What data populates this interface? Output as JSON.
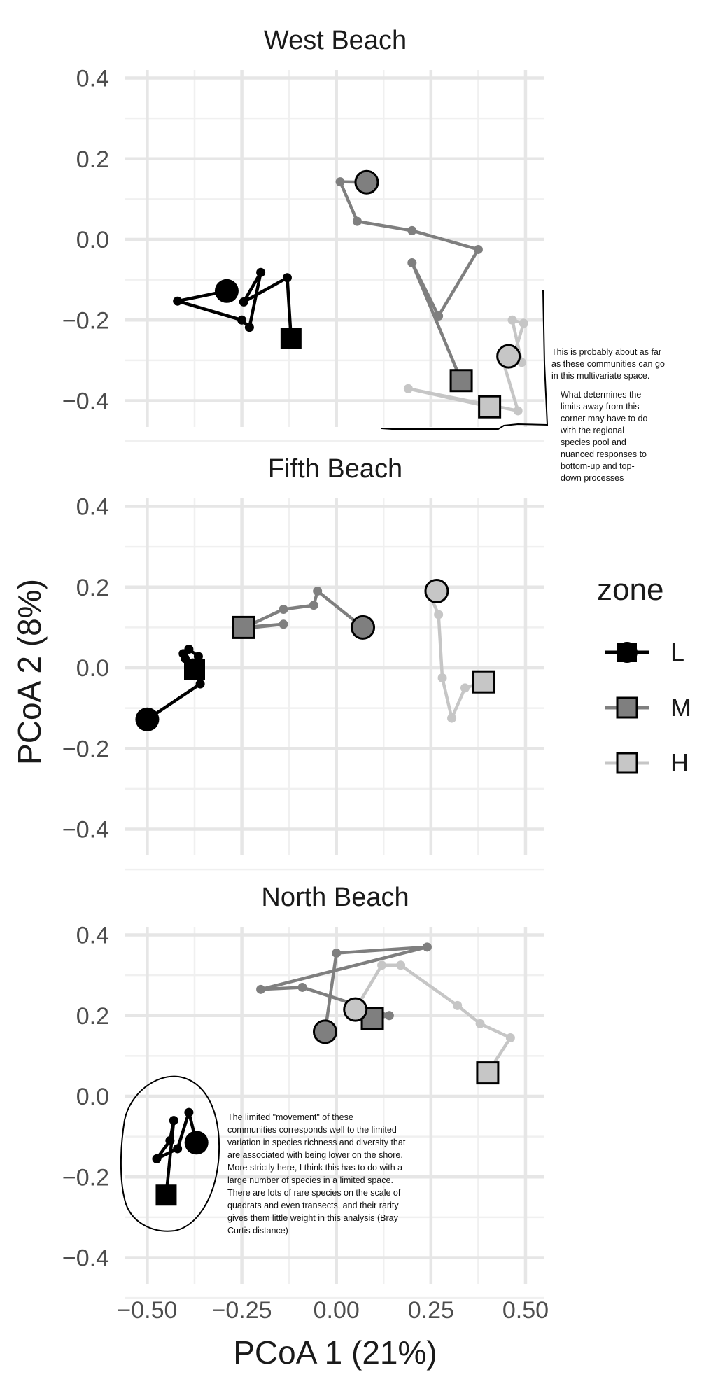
{
  "chart_data": {
    "type": "scatter",
    "xlabel": "PCoA 1 (21%)",
    "ylabel": "PCoA 2 (8%)",
    "xlim": [
      -0.56,
      0.55
    ],
    "ylim": [
      -0.465,
      0.42
    ],
    "x_ticks": [
      -0.5,
      -0.25,
      0.0,
      0.25,
      0.5
    ],
    "x_tick_labels": [
      "−0.50",
      "−0.25",
      "0.00",
      "0.25",
      "0.50"
    ],
    "y_ticks": [
      -0.4,
      -0.2,
      0.0,
      0.2,
      0.4
    ],
    "y_tick_labels": [
      "−0.4",
      "−0.2",
      "0.0",
      "0.2",
      "0.4"
    ],
    "grid": true,
    "legend": {
      "title": "zone",
      "position": "right",
      "items": [
        {
          "label": "L",
          "color": "#000000"
        },
        {
          "label": "M",
          "color": "#7f7f7f"
        },
        {
          "label": "H",
          "color": "#c6c6c6"
        }
      ]
    },
    "panels": [
      {
        "title": "West Beach",
        "series": [
          {
            "name": "L",
            "color": "#000000",
            "points": [
              [
                -0.29,
                -0.128
              ],
              [
                -0.42,
                -0.153
              ],
              [
                -0.25,
                -0.2
              ],
              [
                -0.23,
                -0.218
              ],
              [
                -0.2,
                -0.082
              ],
              [
                -0.245,
                -0.155
              ],
              [
                -0.13,
                -0.095
              ],
              [
                -0.12,
                -0.245
              ]
            ]
          },
          {
            "name": "M",
            "color": "#7f7f7f",
            "points": [
              [
                0.08,
                0.142
              ],
              [
                0.01,
                0.143
              ],
              [
                0.055,
                0.045
              ],
              [
                0.2,
                0.022
              ],
              [
                0.375,
                -0.025
              ],
              [
                0.27,
                -0.19
              ],
              [
                0.2,
                -0.058
              ],
              [
                0.33,
                -0.35
              ]
            ]
          },
          {
            "name": "H",
            "color": "#c6c6c6",
            "points": [
              [
                0.455,
                -0.29
              ],
              [
                0.49,
                -0.305
              ],
              [
                0.465,
                -0.2
              ],
              [
                0.495,
                -0.208
              ],
              [
                0.47,
                -0.285
              ],
              [
                0.435,
                -0.285
              ],
              [
                0.48,
                -0.425
              ],
              [
                0.19,
                -0.37
              ],
              [
                0.405,
                -0.415
              ]
            ]
          }
        ]
      },
      {
        "title": "Fifth Beach",
        "series": [
          {
            "name": "L",
            "color": "#000000",
            "points": [
              [
                -0.5,
                -0.128
              ],
              [
                -0.36,
                -0.04
              ],
              [
                -0.365,
                0.028
              ],
              [
                -0.39,
                0.046
              ],
              [
                -0.405,
                0.035
              ],
              [
                -0.4,
                0.023
              ],
              [
                -0.38,
                0.012
              ],
              [
                -0.375,
                -0.005
              ]
            ]
          },
          {
            "name": "M",
            "color": "#7f7f7f",
            "points": [
              [
                0.07,
                0.1
              ],
              [
                -0.05,
                0.19
              ],
              [
                -0.06,
                0.155
              ],
              [
                -0.14,
                0.145
              ],
              [
                -0.25,
                0.097
              ],
              [
                -0.14,
                0.108
              ],
              [
                -0.245,
                0.1
              ]
            ]
          },
          {
            "name": "H",
            "color": "#c6c6c6",
            "points": [
              [
                0.265,
                0.19
              ],
              [
                0.245,
                0.185
              ],
              [
                0.27,
                0.132
              ],
              [
                0.28,
                -0.025
              ],
              [
                0.305,
                -0.125
              ],
              [
                0.34,
                -0.05
              ],
              [
                0.39,
                -0.035
              ]
            ]
          }
        ]
      },
      {
        "title": "North Beach",
        "series": [
          {
            "name": "L",
            "color": "#000000",
            "points": [
              [
                -0.37,
                -0.115
              ],
              [
                -0.39,
                -0.04
              ],
              [
                -0.42,
                -0.13
              ],
              [
                -0.475,
                -0.155
              ],
              [
                -0.44,
                -0.11
              ],
              [
                -0.43,
                -0.06
              ],
              [
                -0.45,
                -0.245
              ]
            ]
          },
          {
            "name": "M",
            "color": "#7f7f7f",
            "points": [
              [
                -0.03,
                0.16
              ],
              [
                0.0,
                0.355
              ],
              [
                0.24,
                0.37
              ],
              [
                -0.2,
                0.265
              ],
              [
                -0.09,
                0.27
              ],
              [
                0.14,
                0.2
              ],
              [
                0.095,
                0.192
              ]
            ]
          },
          {
            "name": "H",
            "color": "#c6c6c6",
            "points": [
              [
                0.05,
                0.215
              ],
              [
                0.12,
                0.325
              ],
              [
                0.17,
                0.325
              ],
              [
                0.32,
                0.225
              ],
              [
                0.38,
                0.18
              ],
              [
                0.46,
                0.145
              ],
              [
                0.4,
                0.058
              ]
            ]
          }
        ]
      }
    ]
  },
  "annotations": {
    "west": [
      "This is probably about as far",
      "as these communities can go",
      "in this multivariate space.",
      "What determines the",
      "limits away from this",
      "corner may have to do",
      "with the regional",
      "species pool and",
      "nuanced responses to",
      "bottom-up and top-",
      "down processes"
    ],
    "north": [
      "The limited \"movement\" of these",
      "communities corresponds well to the limited",
      "variation in species richness and diversity that",
      "are associated with being lower on the shore.",
      "More strictly here, I think this has to do with a",
      "large number of species in a limited space.",
      "There are lots of rare species on the scale of",
      "quadrats and even transects, and their rarity",
      "gives them little weight in this analysis (Bray",
      "Curtis distance)"
    ]
  }
}
